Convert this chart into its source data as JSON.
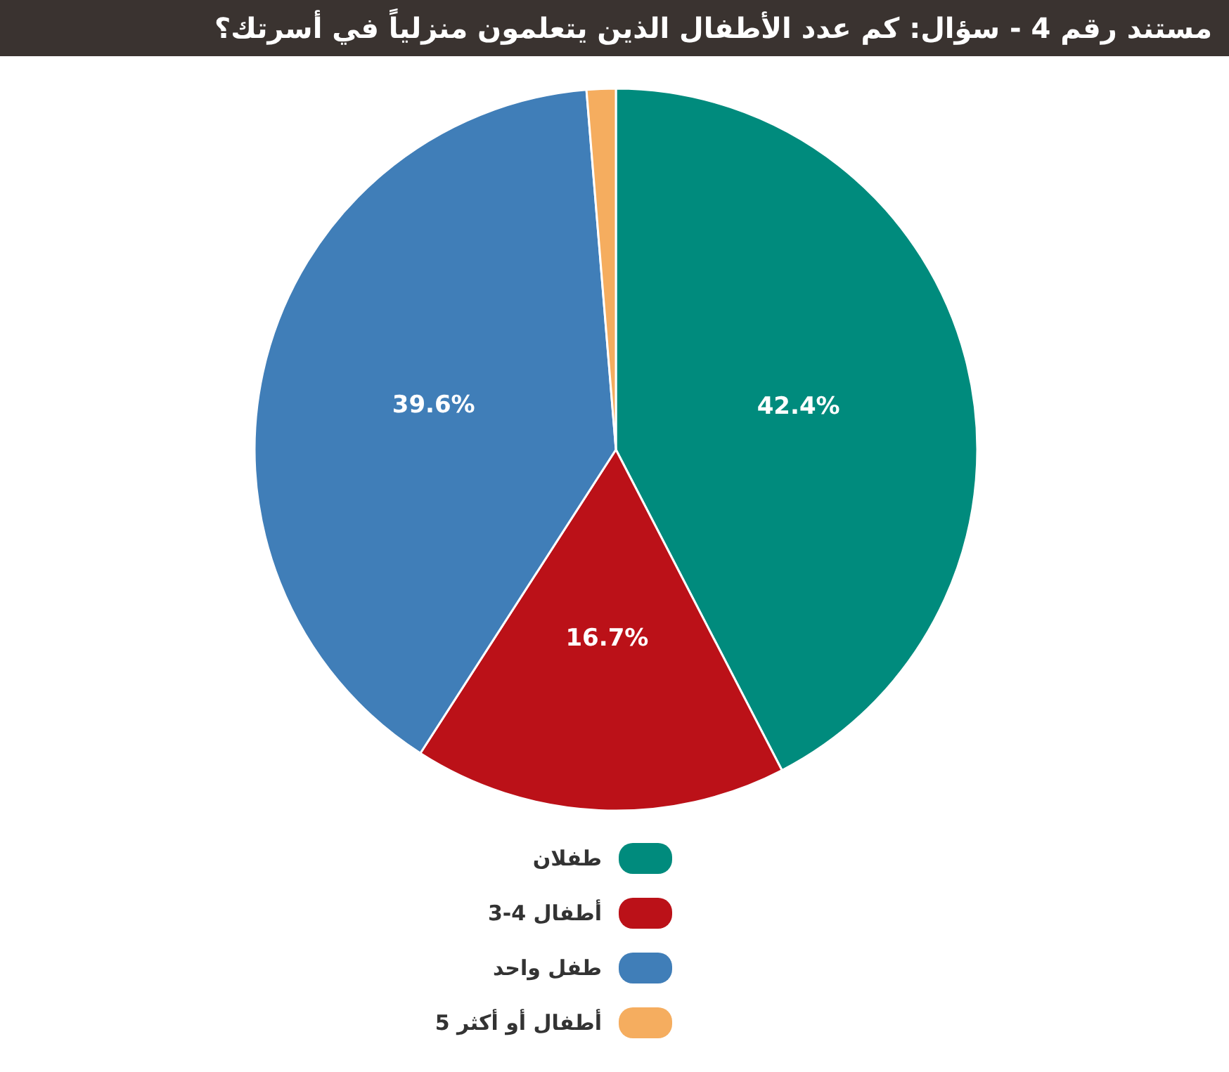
{
  "chart_data": {
    "type": "pie",
    "title": "مستند رقم 4 - سؤال: كم عدد الأطفال الذين يتعلمون منزلياً في أسرتك؟",
    "categories": [
      "طفلان",
      "3-4 أطفال",
      "طفل واحد",
      "5 أطفال أو أكثر"
    ],
    "values": [
      42.4,
      16.7,
      39.6,
      1.3
    ],
    "colors": [
      "#008b7d",
      "#bb1118",
      "#407eb8",
      "#f5ad5f"
    ],
    "value_labels": [
      "42.4%",
      "16.7%",
      "39.6%",
      null
    ],
    "legend": "bottom"
  }
}
